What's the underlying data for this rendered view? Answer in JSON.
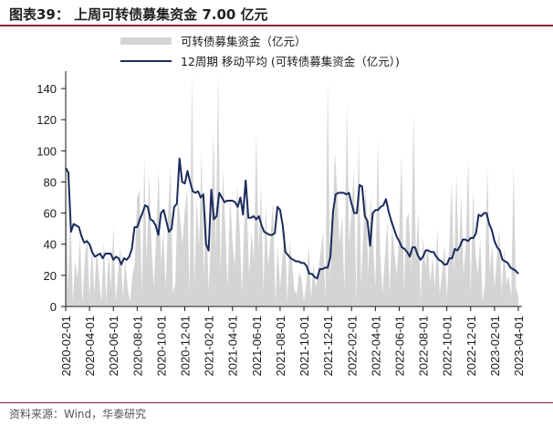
{
  "header": {
    "title": "图表39： 上周可转债募集资金 7.00 亿元",
    "title_bar_color": "#8c1d2e"
  },
  "footer": {
    "source": "资料来源：Wind，华泰研究"
  },
  "chart_data": {
    "type": "area",
    "title": "",
    "xlabel": "",
    "ylabel": "",
    "ylim": [
      0,
      150
    ],
    "yticks": [
      "0",
      "20",
      "40",
      "60",
      "80",
      "100",
      "120",
      "140"
    ],
    "ytick_values": [
      0,
      20,
      40,
      60,
      80,
      100,
      120,
      140
    ],
    "xtick_labels": [
      "2020-02-01",
      "2020-04-01",
      "2020-06-01",
      "2020-08-01",
      "2020-10-01",
      "2020-12-01",
      "2021-02-01",
      "2021-04-01",
      "2021-06-01",
      "2021-08-01",
      "2021-10-01",
      "2021-12-01",
      "2022-02-01",
      "2022-04-01",
      "2022-06-01",
      "2022-08-01",
      "2022-10-01",
      "2022-12-01",
      "2023-02-01",
      "2023-04-01"
    ],
    "grid": false,
    "legend": "top-center",
    "colors": {
      "area": "#d4d4d4",
      "line": "#1b2a5c"
    },
    "series": [
      {
        "name": "可转债募集资金（亿元）",
        "kind": "area",
        "values": [
          90,
          10,
          60,
          3,
          30,
          18,
          45,
          2,
          30,
          45,
          5,
          40,
          8,
          38,
          18,
          3,
          42,
          3,
          35,
          12,
          52,
          3,
          22,
          38,
          5,
          30,
          12,
          3,
          20,
          28,
          70,
          75,
          8,
          95,
          28,
          85,
          40,
          12,
          48,
          88,
          28,
          48,
          12,
          60,
          90,
          8,
          15,
          70,
          58,
          40,
          62,
          75,
          8,
          150,
          12,
          70,
          38,
          100,
          20,
          70,
          10,
          45,
          112,
          35,
          150,
          20,
          88,
          50,
          12,
          70,
          42,
          25,
          78,
          50,
          8,
          55,
          65,
          20,
          48,
          30,
          112,
          35,
          78,
          10,
          65,
          25,
          45,
          68,
          3,
          40,
          12,
          32,
          50,
          3,
          42,
          28,
          10,
          8,
          22,
          18,
          3,
          15,
          40,
          5,
          28,
          12,
          22,
          35,
          48,
          5,
          145,
          18,
          48,
          100,
          72,
          40,
          58,
          10,
          132,
          40,
          62,
          88,
          3,
          110,
          15,
          50,
          78,
          20,
          72,
          40,
          12,
          108,
          35,
          8,
          32,
          55,
          8,
          52,
          35,
          20,
          48,
          98,
          10,
          56,
          60,
          22,
          125,
          30,
          60,
          3,
          45,
          25,
          40,
          15,
          32,
          12,
          50,
          8,
          22,
          40,
          5,
          38,
          80,
          20,
          85,
          28,
          72,
          20,
          42,
          95,
          8,
          75,
          35,
          20,
          45,
          3,
          15,
          90,
          22,
          40,
          12,
          32,
          50,
          8,
          38,
          15,
          20,
          5,
          90,
          12,
          7
        ]
      },
      {
        "name": "12周期 移动平均 (可转债募集资金（亿元）)",
        "kind": "line",
        "values": [
          89,
          86,
          48,
          53,
          52,
          51,
          45,
          41,
          42,
          40,
          35,
          32,
          33,
          34,
          31,
          34,
          34,
          34,
          30,
          32,
          31,
          27,
          31,
          30,
          32,
          37,
          51,
          51,
          56,
          60,
          65,
          64,
          56,
          55,
          52,
          46,
          60,
          62,
          55,
          48,
          50,
          64,
          66,
          95,
          80,
          79,
          87,
          80,
          74,
          73,
          74,
          70,
          72,
          40,
          36,
          75,
          56,
          58,
          73,
          70,
          67,
          68,
          68,
          68,
          67,
          64,
          70,
          59,
          81,
          57,
          57,
          58,
          56,
          58,
          52,
          48,
          47,
          46,
          46,
          47,
          64,
          62,
          52,
          35,
          33,
          31,
          30,
          29,
          29,
          28,
          28,
          26,
          21,
          21,
          19,
          18,
          24,
          24,
          25,
          25,
          32,
          61,
          72,
          73,
          73,
          73,
          72,
          73,
          66,
          60,
          60,
          78,
          77,
          58,
          55,
          39,
          60,
          62,
          62,
          64,
          65,
          69,
          61,
          55,
          50,
          45,
          42,
          38,
          37,
          35,
          32,
          38,
          38,
          33,
          30,
          32,
          36,
          36,
          35,
          35,
          32,
          30,
          29,
          27,
          27,
          31,
          31,
          37,
          36,
          39,
          43,
          43,
          42,
          44,
          44,
          47,
          59,
          58,
          60,
          60,
          53,
          49,
          42,
          38,
          36,
          30,
          29,
          28,
          25,
          24,
          23,
          21
        ]
      }
    ]
  }
}
